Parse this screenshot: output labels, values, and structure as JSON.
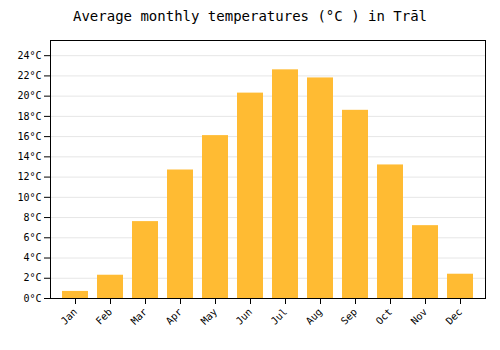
{
  "chart_data": {
    "type": "bar",
    "title": "Average monthly temperatures (°C ) in Trāl",
    "categories": [
      "Jan",
      "Feb",
      "Mar",
      "Apr",
      "May",
      "Jun",
      "Jul",
      "Aug",
      "Sep",
      "Oct",
      "Nov",
      "Dec"
    ],
    "values": [
      0.7,
      2.3,
      7.6,
      12.7,
      16.1,
      20.3,
      22.6,
      21.8,
      18.6,
      13.2,
      7.2,
      2.4
    ],
    "color": "#FFBB33",
    "ylim": [
      0,
      25.5
    ],
    "yticks": [
      {
        "value": 0,
        "label": "0°C"
      },
      {
        "value": 2,
        "label": "2°C"
      },
      {
        "value": 4,
        "label": "4°C"
      },
      {
        "value": 6,
        "label": "6°C"
      },
      {
        "value": 8,
        "label": "8°C"
      },
      {
        "value": 10,
        "label": "10°C"
      },
      {
        "value": 12,
        "label": "12°C"
      },
      {
        "value": 14,
        "label": "14°C"
      },
      {
        "value": 16,
        "label": "16°C"
      },
      {
        "value": 18,
        "label": "18°C"
      },
      {
        "value": 20,
        "label": "20°C"
      },
      {
        "value": 22,
        "label": "22°C"
      },
      {
        "value": 24,
        "label": "24°C"
      }
    ],
    "grid": true
  }
}
